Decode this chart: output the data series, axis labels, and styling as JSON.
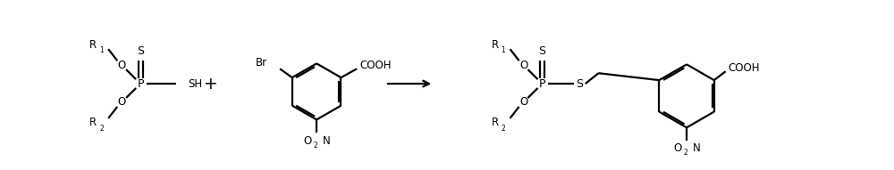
{
  "bg_color": "#ffffff",
  "line_color": "#000000",
  "line_width": 1.6,
  "font_size": 8.5,
  "fig_width": 10.0,
  "fig_height": 1.91,
  "dpi": 100,
  "xlim": [
    0,
    10
  ],
  "ylim": [
    0,
    1.91
  ]
}
